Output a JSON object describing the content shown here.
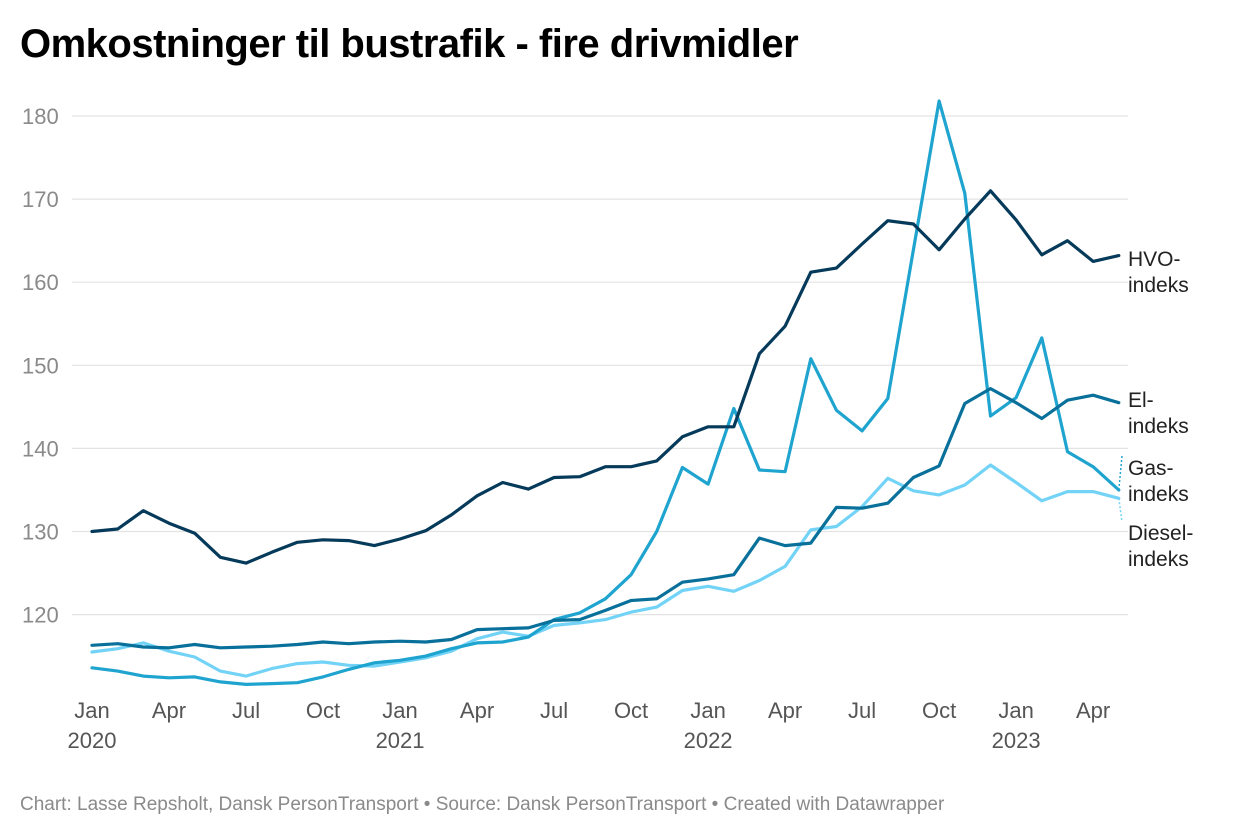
{
  "title": "Omkostninger til bustrafik - fire drivmidler",
  "footer": "Chart: Lasse Repsholt, Dansk PersonTransport • Source: Dansk PersonTransport • Created with Datawrapper",
  "chart_data": {
    "type": "line",
    "title": "Omkostninger til bustrafik - fire drivmidler",
    "ylim": [
      110,
      183
    ],
    "yticks": [
      120,
      130,
      140,
      150,
      160,
      170,
      180
    ],
    "grid": true,
    "x": [
      "2020-01",
      "2020-02",
      "2020-03",
      "2020-04",
      "2020-05",
      "2020-06",
      "2020-07",
      "2020-08",
      "2020-09",
      "2020-10",
      "2020-11",
      "2020-12",
      "2021-01",
      "2021-02",
      "2021-03",
      "2021-04",
      "2021-05",
      "2021-06",
      "2021-07",
      "2021-08",
      "2021-09",
      "2021-10",
      "2021-11",
      "2021-12",
      "2022-01",
      "2022-02",
      "2022-03",
      "2022-04",
      "2022-05",
      "2022-06",
      "2022-07",
      "2022-08",
      "2022-09",
      "2022-10",
      "2022-11",
      "2022-12",
      "2023-01",
      "2023-02",
      "2023-03",
      "2023-04",
      "2023-05"
    ],
    "xticks": [
      {
        "month": "Jan",
        "year": "2020",
        "index": 0
      },
      {
        "month": "Apr",
        "year": "",
        "index": 3
      },
      {
        "month": "Jul",
        "year": "",
        "index": 6
      },
      {
        "month": "Oct",
        "year": "",
        "index": 9
      },
      {
        "month": "Jan",
        "year": "2021",
        "index": 12
      },
      {
        "month": "Apr",
        "year": "",
        "index": 15
      },
      {
        "month": "Jul",
        "year": "",
        "index": 18
      },
      {
        "month": "Oct",
        "year": "",
        "index": 21
      },
      {
        "month": "Jan",
        "year": "2022",
        "index": 24
      },
      {
        "month": "Apr",
        "year": "",
        "index": 27
      },
      {
        "month": "Jul",
        "year": "",
        "index": 30
      },
      {
        "month": "Oct",
        "year": "",
        "index": 33
      },
      {
        "month": "Jan",
        "year": "2023",
        "index": 36
      },
      {
        "month": "Apr",
        "year": "",
        "index": 39
      }
    ],
    "series": [
      {
        "name": "Diesel-indeks",
        "label_lines": [
          "Diesel-",
          "indeks"
        ],
        "color": "#73d3f7",
        "values": [
          115.5,
          115.9,
          116.6,
          115.6,
          114.9,
          113.2,
          112.6,
          113.5,
          114.1,
          114.3,
          113.9,
          113.8,
          114.3,
          114.8,
          115.6,
          117.1,
          117.9,
          117.4,
          118.7,
          119.0,
          119.4,
          120.3,
          120.9,
          122.9,
          123.4,
          122.8,
          124.1,
          125.8,
          130.2,
          130.6,
          133.0,
          136.4,
          134.9,
          134.4,
          135.6,
          138.0,
          135.9,
          133.7,
          134.8,
          134.8,
          134.0
        ]
      },
      {
        "name": "Gas-indeks",
        "label_lines": [
          "Gas-",
          "indeks"
        ],
        "color": "#1ea4cf",
        "values": [
          113.6,
          113.2,
          112.6,
          112.4,
          112.5,
          111.9,
          111.6,
          111.7,
          111.8,
          112.5,
          113.4,
          114.2,
          114.5,
          115.0,
          115.9,
          116.6,
          116.7,
          117.3,
          119.4,
          120.2,
          121.9,
          124.8,
          130.0,
          137.7,
          135.7,
          144.8,
          137.4,
          137.2,
          150.8,
          144.6,
          142.1,
          146.0,
          163.9,
          181.8,
          170.7,
          143.9,
          146.1,
          153.3,
          139.6,
          137.8,
          135.0
        ]
      },
      {
        "name": "El-indeks",
        "label_lines": [
          "El-",
          "indeks"
        ],
        "color": "#08709a",
        "values": [
          116.3,
          116.5,
          116.1,
          116.0,
          116.4,
          116.0,
          116.1,
          116.2,
          116.4,
          116.7,
          116.5,
          116.7,
          116.8,
          116.7,
          117.0,
          118.2,
          118.3,
          118.4,
          119.3,
          119.4,
          120.5,
          121.7,
          121.9,
          123.9,
          124.3,
          124.8,
          129.2,
          128.3,
          128.6,
          132.9,
          132.8,
          133.4,
          136.5,
          137.9,
          145.4,
          147.2,
          145.5,
          143.6,
          145.8,
          146.4,
          145.5
        ]
      },
      {
        "name": "HVO-indeks",
        "label_lines": [
          "HVO-",
          "indeks"
        ],
        "color": "#053a5a",
        "values": [
          130.0,
          130.3,
          132.5,
          131.0,
          129.8,
          126.9,
          126.2,
          127.5,
          128.7,
          129.0,
          128.9,
          128.3,
          129.1,
          130.1,
          132.0,
          134.3,
          135.9,
          135.1,
          136.5,
          136.6,
          137.8,
          137.8,
          138.5,
          141.4,
          142.6,
          142.6,
          151.4,
          154.7,
          161.2,
          161.7,
          164.6,
          167.4,
          167.0,
          163.9,
          167.6,
          171.0,
          167.5,
          163.3,
          165.0,
          162.5,
          163.2
        ]
      }
    ]
  }
}
